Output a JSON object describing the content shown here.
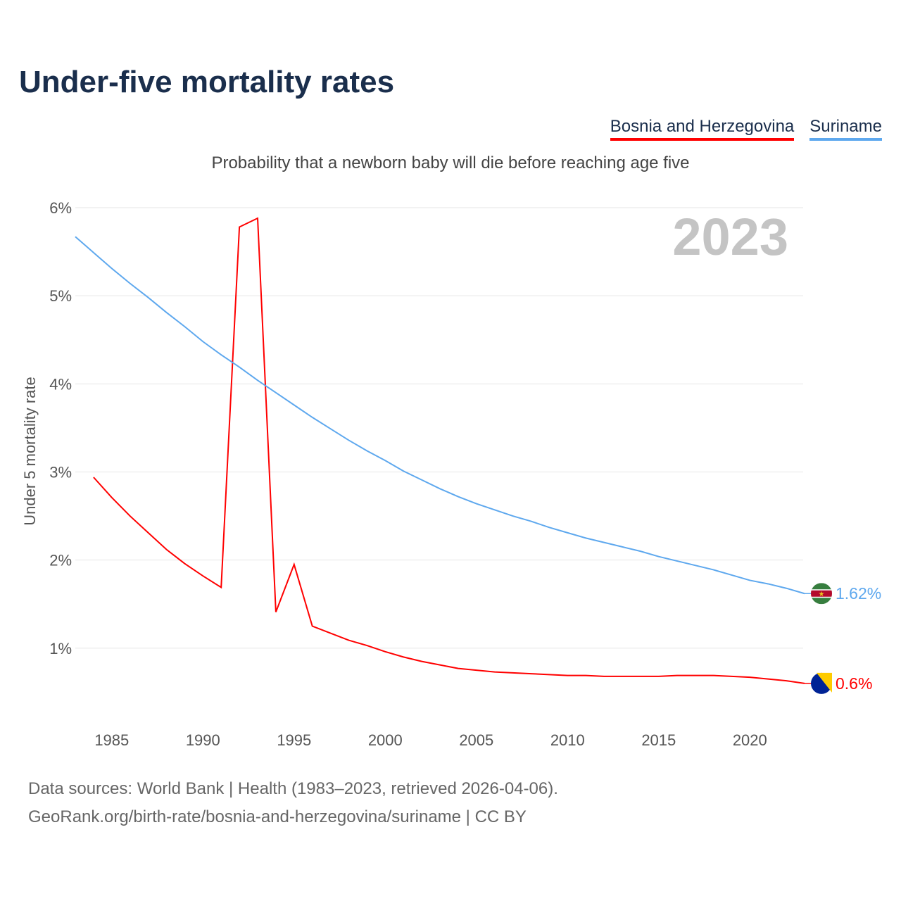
{
  "title": "Under-five mortality rates",
  "subtitle": "Probability that a newborn baby will die before reaching age five",
  "footer": {
    "line1": "Data sources: World Bank | Health (1983–2023, retrieved 2026-04-06).",
    "line2": "GeoRank.org/birth-rate/bosnia-and-herzegovina/suriname | CC BY"
  },
  "chart_data": {
    "type": "line",
    "title": "Under-five mortality rates",
    "ylabel": "Under 5 mortality rate",
    "xlabel": "",
    "year_label": "2023",
    "ylim": [
      0,
      6
    ],
    "xlim": [
      1983,
      2023
    ],
    "yticks": [
      1,
      2,
      3,
      4,
      5,
      6
    ],
    "ytick_labels": [
      "1%",
      "2%",
      "3%",
      "4%",
      "5%",
      "6%"
    ],
    "xticks": [
      1985,
      1990,
      1995,
      2000,
      2005,
      2010,
      2015,
      2020
    ],
    "grid": true,
    "legend_placement": "top-right",
    "series": [
      {
        "name": "Bosnia and Herzegovina",
        "color": "#ff0000",
        "end_label": "0.6%",
        "x": [
          1984,
          1985,
          1986,
          1987,
          1988,
          1989,
          1990,
          1991,
          1992,
          1993,
          1994,
          1995,
          1996,
          1997,
          1998,
          1999,
          2000,
          2001,
          2002,
          2003,
          2004,
          2005,
          2006,
          2007,
          2008,
          2009,
          2010,
          2011,
          2012,
          2013,
          2014,
          2015,
          2016,
          2017,
          2018,
          2019,
          2020,
          2021,
          2022,
          2023
        ],
        "values": [
          2.94,
          2.71,
          2.5,
          2.31,
          2.12,
          1.96,
          1.82,
          1.69,
          5.78,
          5.88,
          1.41,
          1.95,
          1.25,
          1.17,
          1.09,
          1.03,
          0.96,
          0.9,
          0.85,
          0.81,
          0.77,
          0.75,
          0.73,
          0.72,
          0.71,
          0.7,
          0.69,
          0.69,
          0.68,
          0.68,
          0.68,
          0.68,
          0.69,
          0.69,
          0.69,
          0.68,
          0.67,
          0.65,
          0.63,
          0.6
        ]
      },
      {
        "name": "Suriname",
        "color": "#5ea8ee",
        "end_label": "1.62%",
        "x": [
          1983,
          1984,
          1985,
          1986,
          1987,
          1988,
          1989,
          1990,
          1991,
          1992,
          1993,
          1994,
          1995,
          1996,
          1997,
          1998,
          1999,
          2000,
          2001,
          2002,
          2003,
          2004,
          2005,
          2006,
          2007,
          2008,
          2009,
          2010,
          2011,
          2012,
          2013,
          2014,
          2015,
          2016,
          2017,
          2018,
          2019,
          2020,
          2021,
          2022,
          2023
        ],
        "values": [
          5.67,
          5.49,
          5.31,
          5.14,
          4.98,
          4.81,
          4.65,
          4.48,
          4.33,
          4.19,
          4.04,
          3.9,
          3.76,
          3.62,
          3.49,
          3.36,
          3.24,
          3.13,
          3.01,
          2.91,
          2.81,
          2.72,
          2.64,
          2.57,
          2.5,
          2.44,
          2.37,
          2.31,
          2.25,
          2.2,
          2.15,
          2.1,
          2.04,
          1.99,
          1.94,
          1.89,
          1.83,
          1.77,
          1.73,
          1.68,
          1.62
        ]
      }
    ]
  }
}
